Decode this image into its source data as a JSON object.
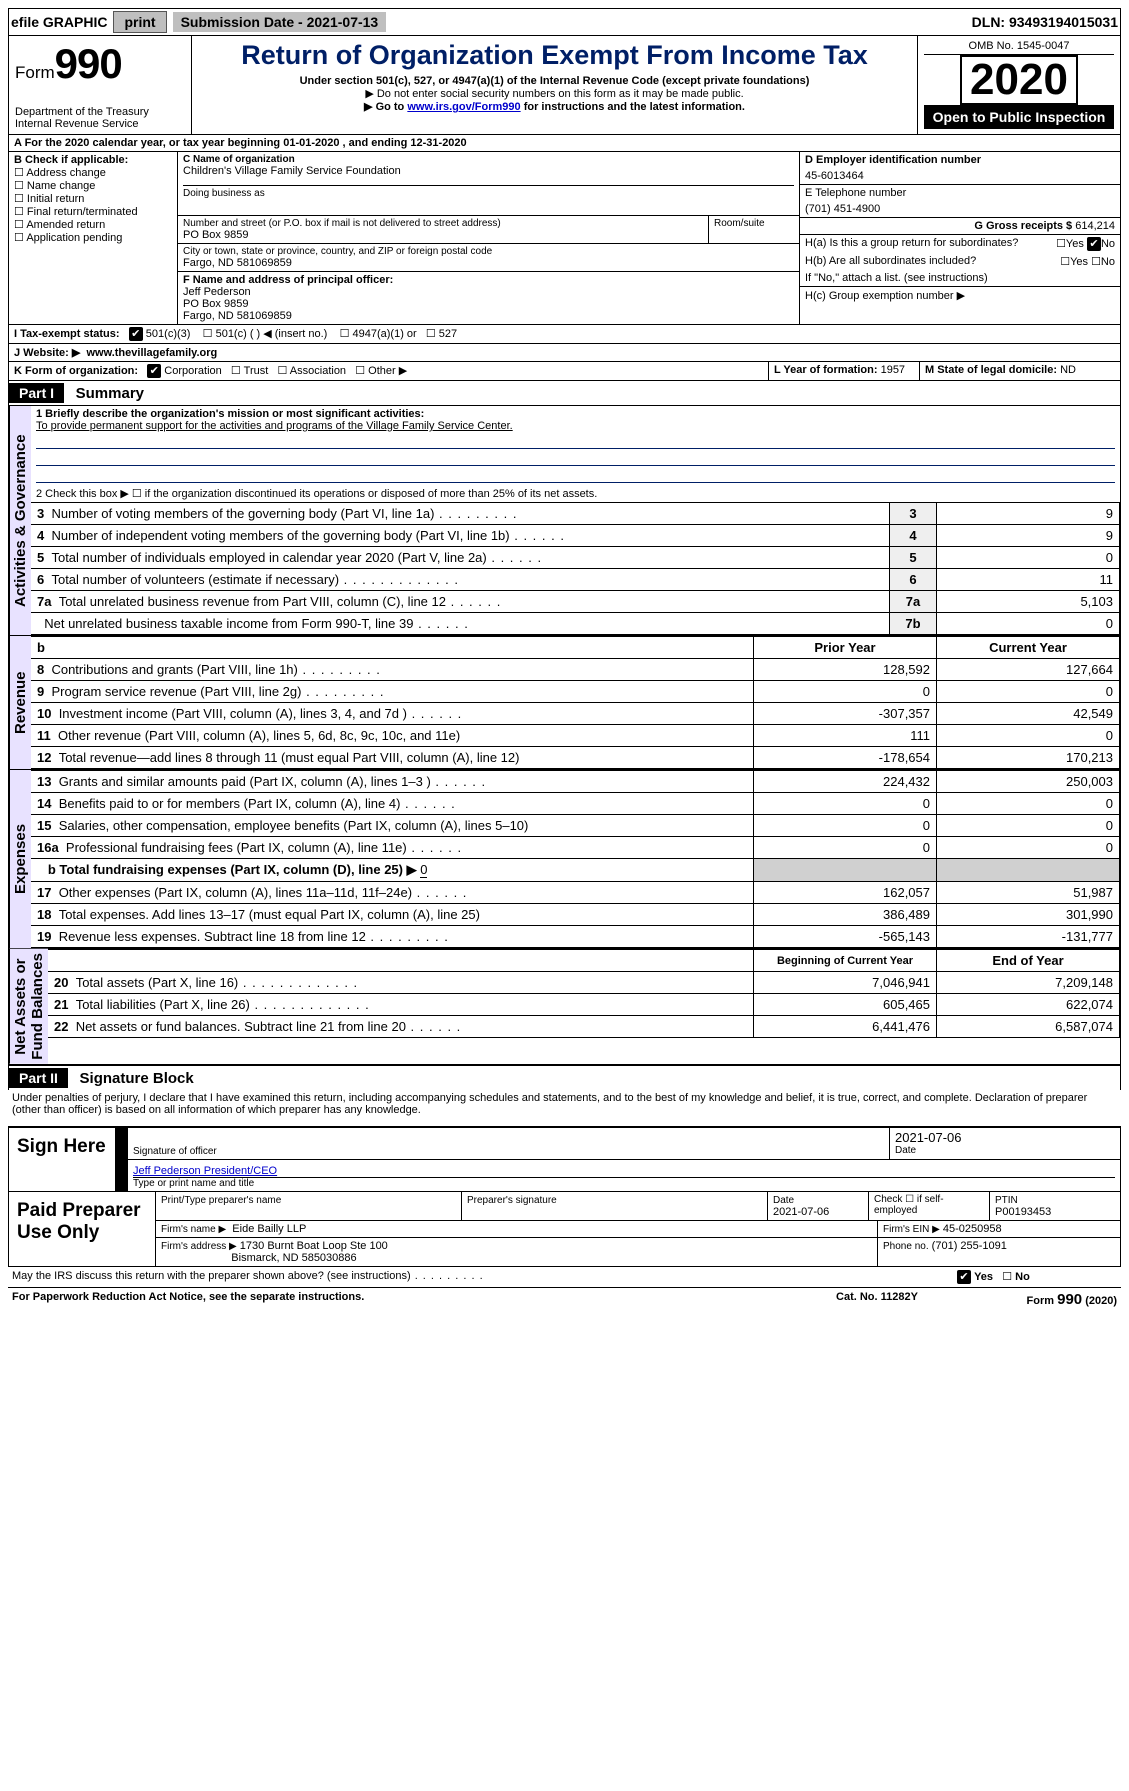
{
  "colors": {
    "accent": "#001f66",
    "headerBg": "#000000",
    "headerFg": "#ffffff",
    "vbar": "#e8e2ff",
    "grey": "#bfbfbf"
  },
  "topbar": {
    "efile": "efile GRAPHIC",
    "print": "print",
    "subDateLabel": "Submission Date - 2021-07-13",
    "dln": "DLN: 93493194015031"
  },
  "formHeader": {
    "formLabel": "Form",
    "formNumber": "990",
    "dept": "Department of the Treasury\nInternal Revenue Service",
    "title": "Return of Organization Exempt From Income Tax",
    "sub1": "Under section 501(c), 527, or 4947(a)(1) of the Internal Revenue Code (except private foundations)",
    "sub2": "▶ Do not enter social security numbers on this form as it may be made public.",
    "sub3a": "▶ Go to ",
    "sub3link": "www.irs.gov/Form990",
    "sub3b": " for instructions and the latest information.",
    "omb": "OMB No. 1545-0047",
    "year": "2020",
    "openPublic": "Open to Public Inspection"
  },
  "periodLine": {
    "prefix": "A For the 2020 calendar year, or tax year beginning ",
    "begin": "01-01-2020",
    "mid": " , and ending ",
    "end": "12-31-2020"
  },
  "boxB": {
    "label": "B Check if applicable:",
    "items": [
      "Address change",
      "Name change",
      "Initial return",
      "Final return/terminated",
      "Amended return",
      "Application pending"
    ]
  },
  "boxC": {
    "nameLabel": "C Name of organization",
    "name": "Children's Village Family Service Foundation",
    "dbaLabel": "Doing business as",
    "addrLabel": "Number and street (or P.O. box if mail is not delivered to street address)",
    "roomLabel": "Room/suite",
    "addr": "PO Box 9859",
    "cityLabel": "City or town, state or province, country, and ZIP or foreign postal code",
    "city": "Fargo, ND  581069859"
  },
  "boxD": {
    "label": "D Employer identification number",
    "val": "45-6013464"
  },
  "boxE": {
    "label": "E Telephone number",
    "val": "(701) 451-4900"
  },
  "boxF": {
    "label": "F Name and address of principal officer:",
    "name": "Jeff Pederson",
    "addr1": "PO Box 9859",
    "addr2": "Fargo, ND 581069859"
  },
  "boxG": {
    "label": "G Gross receipts $",
    "val": "614,214"
  },
  "boxH": {
    "a": "H(a)  Is this a group return for subordinates?",
    "b": "H(b)  Are all subordinates included?",
    "note": "If \"No,\" attach a list. (see instructions)",
    "c": "H(c)  Group exemption number ▶"
  },
  "boxI": {
    "label": "I   Tax-exempt status:",
    "opts": [
      "501(c)(3)",
      "501(c) (  ) ◀ (insert no.)",
      "4947(a)(1) or",
      "527"
    ]
  },
  "boxJ": {
    "label": "J   Website: ▶",
    "val": "www.thevillagefamily.org"
  },
  "boxK": {
    "label": "K Form of organization:",
    "opts": [
      "Corporation",
      "Trust",
      "Association",
      "Other ▶"
    ]
  },
  "boxL": {
    "label": "L Year of formation:",
    "val": "1957"
  },
  "boxM": {
    "label": "M State of legal domicile:",
    "val": "ND"
  },
  "parts": {
    "p1label": "Part I",
    "p1title": "Summary",
    "p2label": "Part II",
    "p2title": "Signature Block"
  },
  "vlabels": {
    "gov": "Activities & Governance",
    "rev": "Revenue",
    "exp": "Expenses",
    "net": "Net Assets or\nFund Balances"
  },
  "summary": {
    "l1label": "1   Briefly describe the organization's mission or most significant activities:",
    "mission": "To provide permanent support for the activities and programs of the Village Family Service Center.",
    "l2": "2   Check this box ▶ ☐  if the organization discontinued its operations or disposed of more than 25% of its net assets.",
    "lines": [
      {
        "n": "3",
        "d": "Number of voting members of the governing body (Part VI, line 1a)",
        "dot": "dots-m",
        "b": "3",
        "v": "9"
      },
      {
        "n": "4",
        "d": "Number of independent voting members of the governing body (Part VI, line 1b)",
        "dot": "dots-s",
        "b": "4",
        "v": "9"
      },
      {
        "n": "5",
        "d": "Total number of individuals employed in calendar year 2020 (Part V, line 2a)",
        "dot": "dots-s",
        "b": "5",
        "v": "0"
      },
      {
        "n": "6",
        "d": "Total number of volunteers (estimate if necessary)",
        "dot": "dots",
        "b": "6",
        "v": "11"
      },
      {
        "n": "7a",
        "d": "Total unrelated business revenue from Part VIII, column (C), line 12",
        "dot": "dots-s",
        "b": "7a",
        "v": "5,103"
      },
      {
        "n": "",
        "d": "Net unrelated business taxable income from Form 990-T, line 39",
        "dot": "dots-s",
        "b": "7b",
        "v": "0"
      }
    ],
    "hdrPrior": "Prior Year",
    "hdrCurrent": "Current Year",
    "revLines": [
      {
        "n": "8",
        "d": "Contributions and grants (Part VIII, line 1h)",
        "dot": "dots-m",
        "p": "128,592",
        "c": "127,664"
      },
      {
        "n": "9",
        "d": "Program service revenue (Part VIII, line 2g)",
        "dot": "dots-m",
        "p": "0",
        "c": "0"
      },
      {
        "n": "10",
        "d": "Investment income (Part VIII, column (A), lines 3, 4, and 7d )",
        "dot": "dots-s",
        "p": "-307,357",
        "c": "42,549"
      },
      {
        "n": "11",
        "d": "Other revenue (Part VIII, column (A), lines 5, 6d, 8c, 9c, 10c, and 11e)",
        "dot": "",
        "p": "111",
        "c": "0"
      },
      {
        "n": "12",
        "d": "Total revenue—add lines 8 through 11 (must equal Part VIII, column (A), line 12)",
        "dot": "",
        "p": "-178,654",
        "c": "170,213"
      }
    ],
    "expLines": [
      {
        "n": "13",
        "d": "Grants and similar amounts paid (Part IX, column (A), lines 1–3 )",
        "dot": "dots-s",
        "p": "224,432",
        "c": "250,003"
      },
      {
        "n": "14",
        "d": "Benefits paid to or for members (Part IX, column (A), line 4)",
        "dot": "dots-s",
        "p": "0",
        "c": "0"
      },
      {
        "n": "15",
        "d": "Salaries, other compensation, employee benefits (Part IX, column (A), lines 5–10)",
        "dot": "",
        "p": "0",
        "c": "0"
      },
      {
        "n": "16a",
        "d": "Professional fundraising fees (Part IX, column (A), line 11e)",
        "dot": "dots-s",
        "p": "0",
        "c": "0"
      }
    ],
    "l16b": "b   Total fundraising expenses (Part IX, column (D), line 25) ▶",
    "l16bval": "0",
    "expLines2": [
      {
        "n": "17",
        "d": "Other expenses (Part IX, column (A), lines 11a–11d, 11f–24e)",
        "dot": "dots-s",
        "p": "162,057",
        "c": "51,987"
      },
      {
        "n": "18",
        "d": "Total expenses. Add lines 13–17 (must equal Part IX, column (A), line 25)",
        "dot": "",
        "p": "386,489",
        "c": "301,990"
      },
      {
        "n": "19",
        "d": "Revenue less expenses. Subtract line 18 from line 12",
        "dot": "dots-m",
        "p": "-565,143",
        "c": "-131,777"
      }
    ],
    "hdrBeg": "Beginning of Current Year",
    "hdrEnd": "End of Year",
    "netLines": [
      {
        "n": "20",
        "d": "Total assets (Part X, line 16)",
        "dot": "dots",
        "p": "7,046,941",
        "c": "7,209,148"
      },
      {
        "n": "21",
        "d": "Total liabilities (Part X, line 26)",
        "dot": "dots",
        "p": "605,465",
        "c": "622,074"
      },
      {
        "n": "22",
        "d": "Net assets or fund balances. Subtract line 21 from line 20",
        "dot": "dots-s",
        "p": "6,441,476",
        "c": "6,587,074"
      }
    ]
  },
  "perjury": "Under penalties of perjury, I declare that I have examined this return, including accompanying schedules and statements, and to the best of my knowledge and belief, it is true, correct, and complete. Declaration of preparer (other than officer) is based on all information of which preparer has any knowledge.",
  "sign": {
    "here": "Sign Here",
    "sigOfficer": "Signature of officer",
    "sigDate": "2021-07-06",
    "dateLabel": "Date",
    "typed": "Jeff Pederson  President/CEO",
    "typedLabel": "Type or print name and title"
  },
  "paid": {
    "label": "Paid Preparer Use Only",
    "nameLabel": "Print/Type preparer's name",
    "sigLabel": "Preparer's signature",
    "dateLabel": "Date",
    "date": "2021-07-06",
    "checkLabel": "Check ☐ if self-employed",
    "ptinLabel": "PTIN",
    "ptin": "P00193453",
    "firmLabel": "Firm's name    ▶",
    "firm": "Eide Bailly LLP",
    "einLabel": "Firm's EIN ▶",
    "ein": "45-0250958",
    "addrLabel": "Firm's address ▶",
    "addr1": "1730 Burnt Boat Loop Ste 100",
    "addr2": "Bismarck, ND  585030886",
    "phoneLabel": "Phone no.",
    "phone": "(701) 255-1091"
  },
  "footer": {
    "discuss": "May the IRS discuss this return with the preparer shown above? (see instructions)",
    "paperwork": "For Paperwork Reduction Act Notice, see the separate instructions.",
    "cat": "Cat. No. 11282Y",
    "formFoot": "Form 990 (2020)",
    "yes": "Yes",
    "no": "No"
  }
}
